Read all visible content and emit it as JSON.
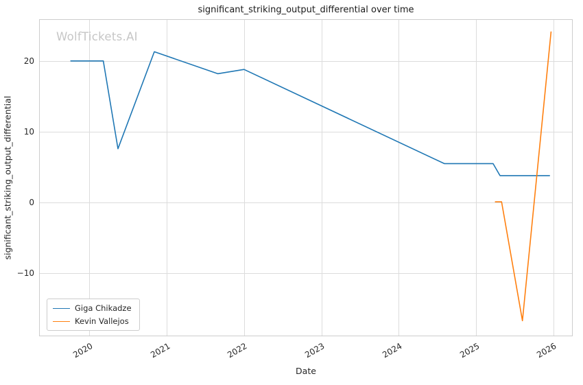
{
  "watermark": "WolfTickets.AI",
  "chart_data": {
    "type": "line",
    "title": "significant_striking_output_differential over time",
    "xlabel": "Date",
    "ylabel": "significant_striking_output_differential",
    "x_ticks": [
      2020,
      2021,
      2022,
      2023,
      2024,
      2025,
      2026
    ],
    "y_ticks": [
      -10,
      0,
      10,
      20
    ],
    "xlim": [
      2019.35,
      2026.25
    ],
    "ylim": [
      -18.9,
      25.9
    ],
    "grid": true,
    "legend_position": "lower left",
    "colors": {
      "grid": "#dcdcdc",
      "spine": "#cccccc",
      "text": "#262626",
      "watermark": "#c6c6c6"
    },
    "series": [
      {
        "name": "Giga Chikadze",
        "color": "#1f77b4",
        "x": [
          2019.76,
          2020.18,
          2020.37,
          2020.84,
          2021.66,
          2022.0,
          2024.59,
          2025.22,
          2025.31,
          2025.95
        ],
        "y": [
          20,
          20,
          7.6,
          21.3,
          18.2,
          18.8,
          5.5,
          5.5,
          3.8,
          3.8
        ]
      },
      {
        "name": "Kevin Vallejos",
        "color": "#ff7f0e",
        "x": [
          2025.25,
          2025.33,
          2025.6,
          2025.97
        ],
        "y": [
          0.1,
          0.1,
          -16.7,
          24.1
        ]
      }
    ]
  }
}
